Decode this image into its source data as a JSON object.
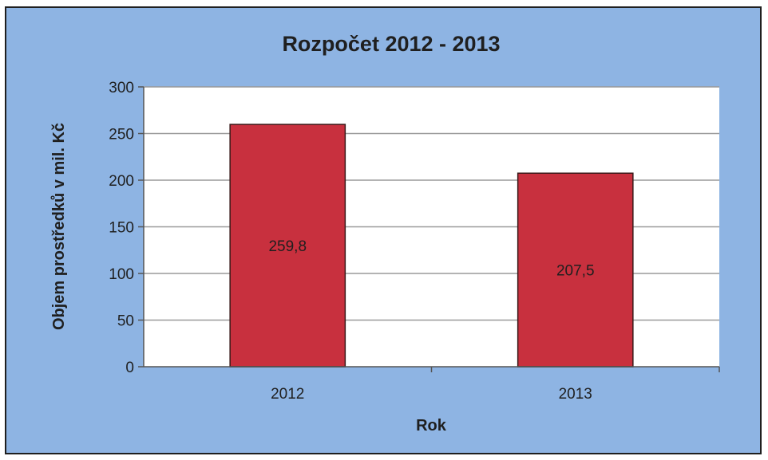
{
  "chart_data": {
    "type": "bar",
    "title": "Rozpočet 2012 - 2013",
    "xlabel": "Rok",
    "ylabel": "Objem prostředků v mil. Kč",
    "categories": [
      "2012",
      "2013"
    ],
    "values": [
      259.8,
      207.5
    ],
    "data_labels": [
      "259,8",
      "207,5"
    ],
    "ylim": [
      0,
      300
    ],
    "yticks": [
      0,
      50,
      100,
      150,
      200,
      250,
      300
    ],
    "grid": true,
    "legend": "none",
    "colors": {
      "bar": "#c8303e",
      "bar_border": "#3a1a1a",
      "plot_background": "#ffffff",
      "chart_background": "#8eb4e3",
      "gridline": "#9a9a9a"
    }
  }
}
